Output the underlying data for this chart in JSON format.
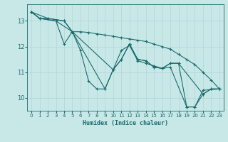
{
  "title": "",
  "xlabel": "Humidex (Indice chaleur)",
  "ylabel": "",
  "background_color": "#c8e8e8",
  "line_color": "#1a6b6b",
  "grid_color": "#b0d4d4",
  "xlim": [
    -0.5,
    23.5
  ],
  "ylim": [
    9.5,
    13.65
  ],
  "yticks": [
    10,
    11,
    12,
    13
  ],
  "xticks": [
    0,
    1,
    2,
    3,
    4,
    5,
    6,
    7,
    8,
    9,
    10,
    11,
    12,
    13,
    14,
    15,
    16,
    17,
    18,
    19,
    20,
    21,
    22,
    23
  ],
  "lines": [
    {
      "x": [
        0,
        1,
        2,
        4,
        5,
        6,
        7,
        8,
        9,
        10,
        11,
        12,
        13,
        14,
        15,
        16,
        17,
        18,
        19,
        20,
        21,
        22,
        23
      ],
      "y": [
        13.35,
        13.1,
        13.1,
        13.0,
        12.58,
        11.85,
        10.65,
        10.35,
        10.35,
        11.1,
        11.5,
        12.1,
        11.5,
        11.45,
        11.2,
        11.15,
        11.35,
        11.35,
        9.65,
        9.65,
        10.15,
        10.35,
        10.35
      ]
    },
    {
      "x": [
        0,
        1,
        3,
        5,
        9,
        10,
        11,
        12,
        13,
        14,
        15,
        16,
        17,
        18,
        21,
        22,
        23
      ],
      "y": [
        13.35,
        13.1,
        13.0,
        12.58,
        10.35,
        11.1,
        11.5,
        12.1,
        11.5,
        11.45,
        11.2,
        11.15,
        11.35,
        11.35,
        10.15,
        10.35,
        10.35
      ]
    },
    {
      "x": [
        0,
        2,
        4,
        5,
        10,
        11,
        12,
        13,
        14,
        15,
        16,
        17,
        19,
        20,
        21,
        23
      ],
      "y": [
        13.35,
        13.1,
        13.0,
        12.58,
        11.1,
        11.85,
        12.05,
        11.45,
        11.35,
        11.25,
        11.15,
        11.2,
        9.65,
        9.65,
        10.3,
        10.35
      ]
    },
    {
      "x": [
        0,
        1,
        3,
        4,
        5,
        6,
        7,
        8,
        9,
        10,
        11,
        12,
        13,
        14,
        15,
        16,
        17,
        18,
        19,
        20,
        21,
        22,
        23
      ],
      "y": [
        13.35,
        13.1,
        13.0,
        12.1,
        12.58,
        12.58,
        12.55,
        12.5,
        12.45,
        12.4,
        12.35,
        12.3,
        12.25,
        12.2,
        12.1,
        12.0,
        11.9,
        11.7,
        11.5,
        11.3,
        11.0,
        10.7,
        10.35
      ]
    }
  ]
}
